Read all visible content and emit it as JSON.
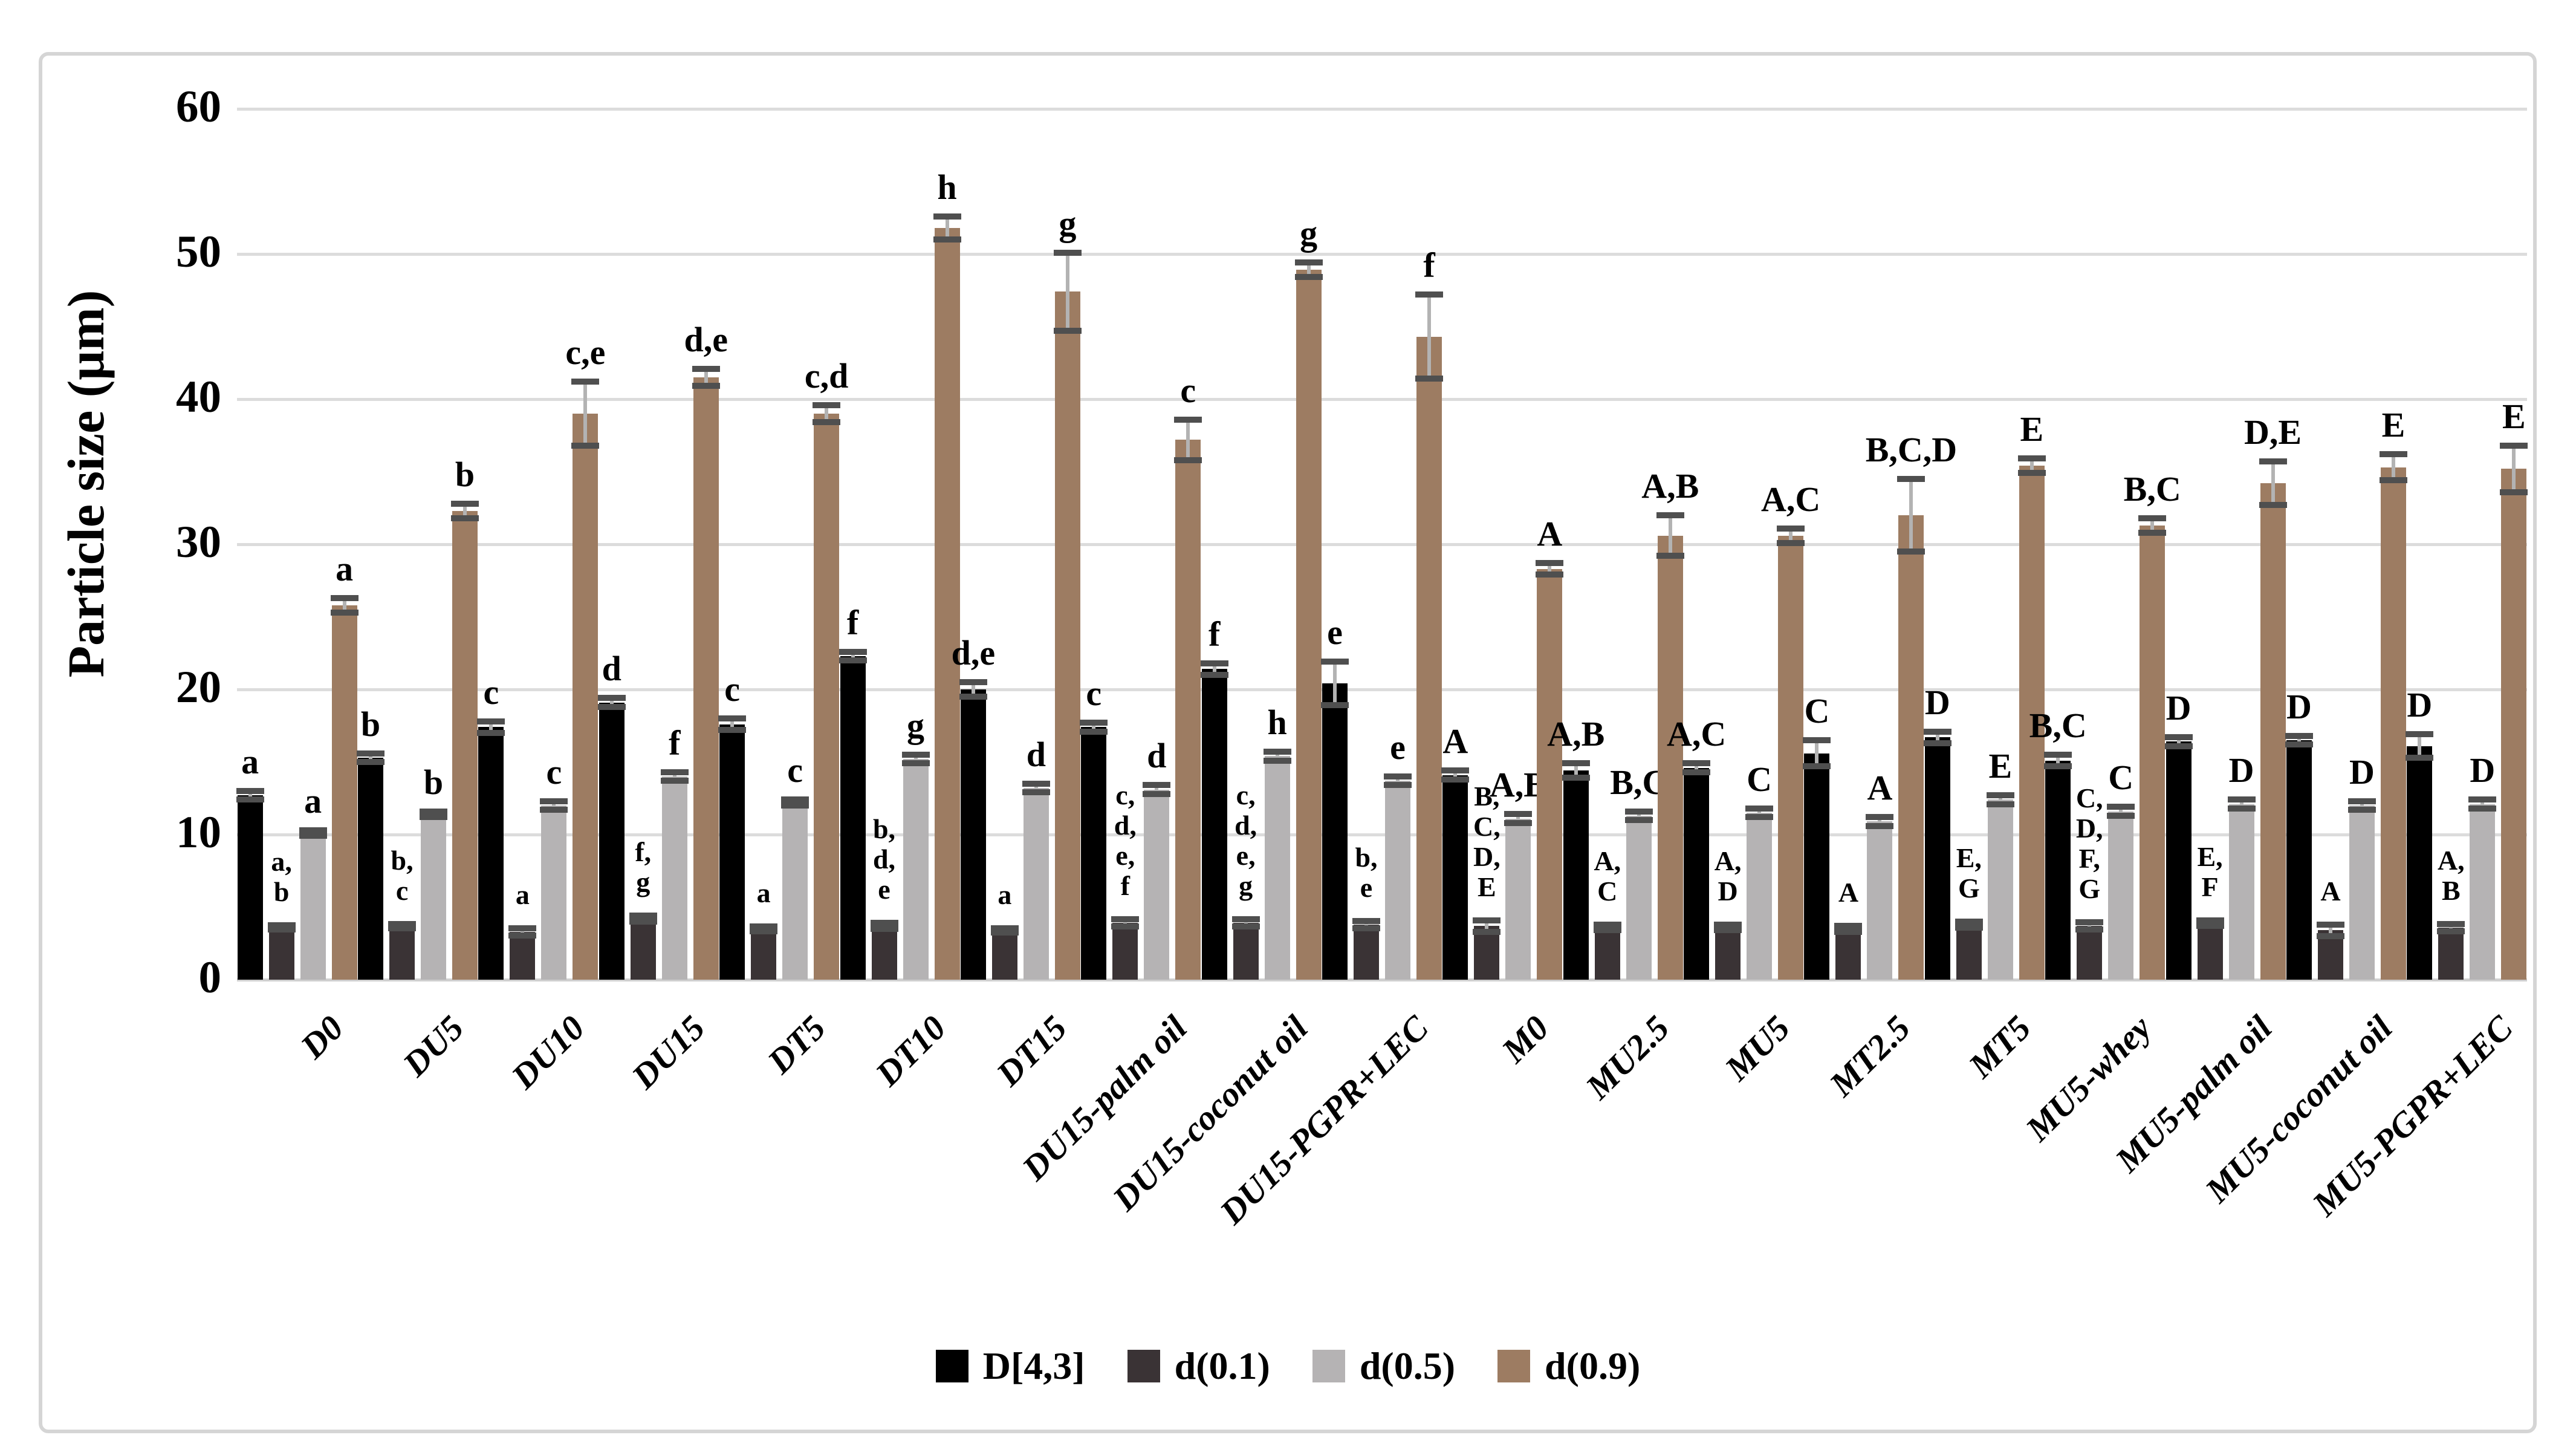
{
  "figure": {
    "background": "#ffffff",
    "border_color": "#d5d5d5"
  },
  "y_axis": {
    "title": "Particle size (μm)",
    "ticks": [
      0,
      10,
      20,
      30,
      40,
      50,
      60
    ],
    "max": 60
  },
  "colors": {
    "grid": "#dcdcdc",
    "error_stem": "#b3b3b3",
    "error_cap": "#4f4f4f"
  },
  "legend": [
    {
      "label": "D[4,3]",
      "color": "#000000"
    },
    {
      "label": "d(0.1)",
      "color": "#3a3335"
    },
    {
      "label": "d(0.5)",
      "color": "#b5b3b4"
    },
    {
      "label": "d(0.9)",
      "color": "#9d7c62"
    }
  ],
  "chart_data": {
    "type": "bar",
    "title": "",
    "xlabel": "",
    "ylabel": "Particle size (μm)",
    "ylim": [
      0,
      60
    ],
    "grid": true,
    "legend_position": "bottom",
    "categories": [
      "D0",
      "DU5",
      "DU10",
      "DU15",
      "DT5",
      "DT10",
      "DT15",
      "DU15-palm oil",
      "DU15-coconut oil",
      "DU15-PGPR+LEC",
      "M0",
      "MU2.5",
      "MU5",
      "MT2.5",
      "MT5",
      "MU5-whey",
      "MU5-palm oil",
      "MU5-coconut oil",
      "MU5-PGPR+LEC"
    ],
    "series": [
      {
        "name": "D[4,3]",
        "color": "#000000",
        "values": [
          12.7,
          15.3,
          17.4,
          19.1,
          17.6,
          22.3,
          20.0,
          17.4,
          21.4,
          20.4,
          14.1,
          14.4,
          14.6,
          15.6,
          16.7,
          15.1,
          16.4,
          16.5,
          16.1
        ],
        "errors": [
          0.3,
          0.3,
          0.4,
          0.3,
          0.4,
          0.3,
          0.5,
          0.3,
          0.4,
          1.5,
          0.3,
          0.5,
          0.3,
          0.9,
          0.4,
          0.4,
          0.3,
          0.3,
          0.8
        ],
        "letters": [
          "a",
          "b",
          "c",
          "d",
          "c",
          "f",
          "d,e",
          "c",
          "f",
          "e",
          "A",
          "A,B",
          "A,C",
          "C",
          "D",
          "B,C",
          "D",
          "D",
          "D"
        ]
      },
      {
        "name": "d(0.1)",
        "color": "#3a3335",
        "values": [
          3.6,
          3.7,
          3.3,
          4.2,
          3.5,
          3.7,
          3.4,
          3.9,
          3.9,
          3.8,
          3.7,
          3.6,
          3.6,
          3.5,
          3.8,
          3.7,
          3.9,
          3.4,
          3.6
        ],
        "errors": [
          0.15,
          0.15,
          0.25,
          0.2,
          0.15,
          0.2,
          0.15,
          0.25,
          0.25,
          0.25,
          0.4,
          0.2,
          0.2,
          0.2,
          0.2,
          0.25,
          0.2,
          0.4,
          0.25
        ],
        "letters": [
          "a,b",
          "b,c",
          "a",
          "f,g",
          "a",
          "b,d,e",
          "a",
          "c,d,e,f",
          "c,d,e,g",
          "b,e",
          "B,C,D,E",
          "A,C",
          "A,D",
          "A",
          "E,G",
          "C,D,F,G",
          "E,F",
          "A",
          "A,B"
        ]
      },
      {
        "name": "d(0.5)",
        "color": "#b5b3b4",
        "values": [
          10.1,
          11.4,
          12.0,
          14.0,
          12.2,
          15.2,
          13.2,
          13.1,
          15.4,
          13.7,
          11.1,
          11.3,
          11.5,
          10.9,
          12.4,
          11.6,
          12.1,
          12.0,
          12.1
        ],
        "errors": [
          0.2,
          0.2,
          0.3,
          0.3,
          0.2,
          0.3,
          0.3,
          0.3,
          0.3,
          0.3,
          0.3,
          0.3,
          0.3,
          0.3,
          0.3,
          0.3,
          0.3,
          0.3,
          0.3
        ],
        "letters": [
          "a",
          "b",
          "c",
          "f",
          "c",
          "g",
          "d",
          "d",
          "h",
          "e",
          "A,B",
          "B,C",
          "C",
          "A",
          "E",
          "C",
          "D",
          "D",
          "D"
        ]
      },
      {
        "name": "d(0.9)",
        "color": "#9d7c62",
        "values": [
          25.8,
          32.3,
          39.0,
          41.5,
          39.0,
          51.8,
          47.4,
          37.2,
          48.9,
          44.3,
          28.3,
          30.6,
          30.6,
          32.0,
          35.4,
          31.3,
          34.2,
          35.3,
          35.2
        ],
        "errors": [
          0.5,
          0.5,
          2.2,
          0.6,
          0.6,
          0.8,
          2.7,
          1.4,
          0.5,
          2.9,
          0.4,
          1.4,
          0.5,
          2.5,
          0.5,
          0.5,
          1.5,
          0.9,
          1.6
        ],
        "letters": [
          "a",
          "b",
          "c,e",
          "d,e",
          "c,d",
          "h",
          "g",
          "c",
          "g",
          "f",
          "A",
          "A,B",
          "A,C",
          "B,C,D",
          "E",
          "B,C",
          "D,E",
          "E",
          "E"
        ]
      }
    ]
  }
}
